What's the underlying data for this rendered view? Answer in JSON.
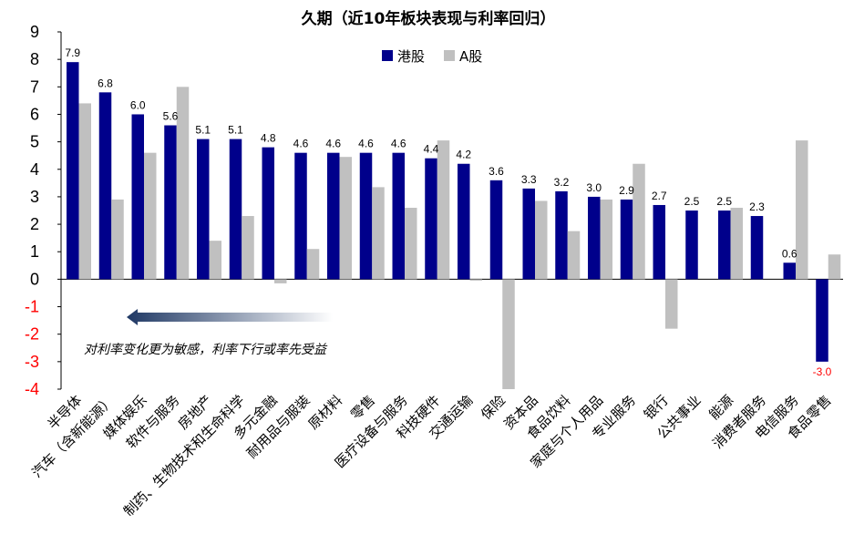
{
  "chart_data": {
    "type": "bar",
    "title": "久期（近10年板块表现与利率回归）",
    "categories": [
      "半导体",
      "汽车（含新能源）",
      "媒体娱乐",
      "软件与服务",
      "房地产",
      "制药、生物技术和生命科学",
      "多元金融",
      "耐用品与服装",
      "原材料",
      "零售",
      "医疗设备与服务",
      "科技硬件",
      "交通运输",
      "保险",
      "资本品",
      "食品饮料",
      "家庭与个人用品",
      "专业服务",
      "银行",
      "公共事业",
      "能源",
      "消费者服务",
      "电信服务",
      "食品零售"
    ],
    "series": [
      {
        "name": "港股",
        "color": "#00008B",
        "values": [
          7.9,
          6.8,
          6.0,
          5.6,
          5.1,
          5.1,
          4.8,
          4.6,
          4.6,
          4.6,
          4.6,
          4.4,
          4.2,
          3.6,
          3.3,
          3.2,
          3.0,
          2.9,
          2.7,
          2.5,
          2.5,
          2.3,
          0.6,
          -3.0
        ]
      },
      {
        "name": "A股",
        "color": "#C0C0C0",
        "values": [
          6.4,
          2.9,
          4.6,
          7.0,
          1.4,
          2.3,
          -0.15,
          1.1,
          4.45,
          3.35,
          2.6,
          5.05,
          -0.05,
          -4.0,
          2.85,
          1.75,
          2.9,
          4.2,
          -1.8,
          0,
          2.6,
          0,
          5.05,
          0.9
        ]
      }
    ],
    "value_labels": [
      "7.9",
      "6.8",
      "6.0",
      "5.6",
      "5.1",
      "5.1",
      "4.8",
      "4.6",
      "4.6",
      "4.6",
      "4.6",
      "4.4",
      "4.2",
      "3.6",
      "3.3",
      "3.2",
      "3.0",
      "2.9",
      "2.7",
      "2.5",
      "2.5",
      "2.3",
      "0.6",
      "-3.0"
    ],
    "ylim": [
      -4,
      9
    ],
    "yticks": [
      "9",
      "8",
      "7",
      "6",
      "5",
      "4",
      "3",
      "2",
      "1",
      "0",
      "-1",
      "-2",
      "-3",
      "-4"
    ],
    "grid": false,
    "legend_position": "top-center",
    "annotation": "对利率变化更为敏感，利率下行或率先受益",
    "colors": {
      "positive_tick": "#000000",
      "negative_tick": "#FF0000",
      "arrow": "#1F3864"
    }
  }
}
